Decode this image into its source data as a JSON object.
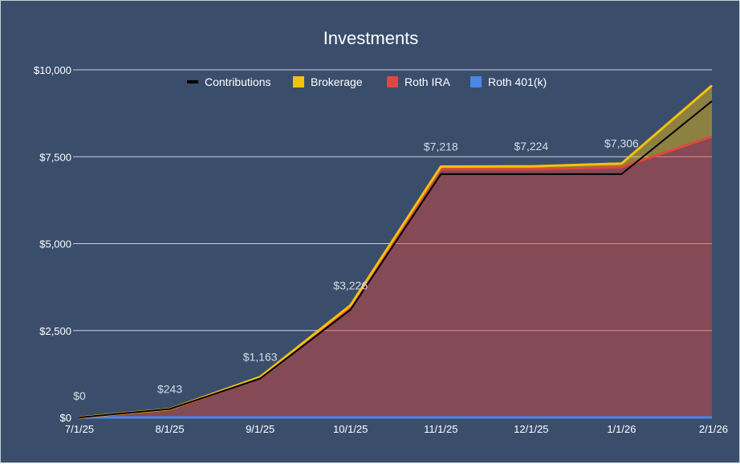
{
  "chart_data": {
    "type": "area",
    "title": "Investments",
    "xlabel": "",
    "ylabel": "",
    "categories": [
      "7/1/25",
      "8/1/25",
      "9/1/25",
      "10/1/25",
      "11/1/25",
      "12/1/25",
      "1/1/26",
      "2/1/26"
    ],
    "ylim": [
      0,
      10000
    ],
    "yticks": [
      0,
      2500,
      5000,
      7500,
      10000
    ],
    "ytick_labels": [
      "$0",
      "$2,500",
      "$5,000",
      "$7,500",
      "$10,000"
    ],
    "grid": true,
    "legend_position": "top",
    "stacked": true,
    "series": [
      {
        "name": "Roth 401(k)",
        "color": "#4a86e8",
        "values": [
          0,
          0,
          0,
          0,
          0,
          0,
          0,
          0
        ]
      },
      {
        "name": "Roth IRA",
        "color": "#e0483c",
        "values": [
          0,
          230,
          1130,
          3150,
          7140,
          7140,
          7200,
          8080
        ]
      },
      {
        "name": "Brokerage",
        "color": "#f4c20d",
        "values": [
          0,
          13,
          33,
          76,
          78,
          84,
          106,
          1470
        ]
      }
    ],
    "line_series": {
      "name": "Contributions",
      "color": "#000000",
      "values": [
        0,
        243,
        1120,
        3100,
        7000,
        7000,
        7000,
        9100
      ]
    },
    "data_labels": [
      "$0",
      "$243",
      "$1,163",
      "$3,226",
      "$7,218",
      "$7,224",
      "$7,306",
      ""
    ],
    "legend": [
      "Contributions",
      "Brokerage",
      "Roth IRA",
      "Roth 401(k)"
    ]
  }
}
